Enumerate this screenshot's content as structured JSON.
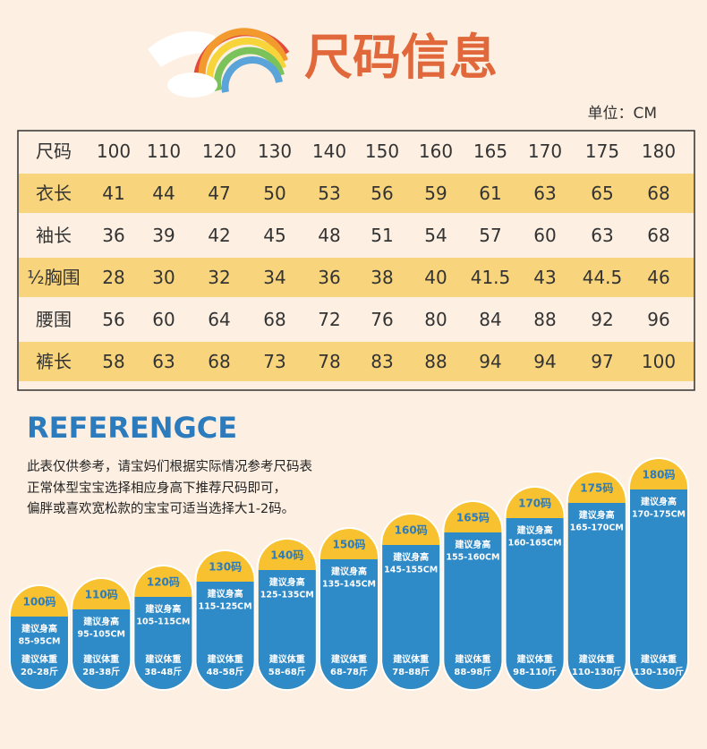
{
  "header": {
    "title": "尺码信息",
    "unit": "单位：CM"
  },
  "table": {
    "header": [
      "尺码",
      "100",
      "110",
      "120",
      "130",
      "140",
      "150",
      "160",
      "165",
      "170",
      "175",
      "180"
    ],
    "rows": [
      [
        "衣长",
        "41",
        "44",
        "47",
        "50",
        "53",
        "56",
        "59",
        "61",
        "63",
        "65",
        "68"
      ],
      [
        "袖长",
        "36",
        "39",
        "42",
        "45",
        "48",
        "51",
        "54",
        "57",
        "60",
        "63",
        "68"
      ],
      [
        "½胸围",
        "28",
        "30",
        "32",
        "34",
        "36",
        "38",
        "40",
        "41.5",
        "43",
        "44.5",
        "46"
      ],
      [
        "腰围",
        "56",
        "60",
        "64",
        "68",
        "72",
        "76",
        "80",
        "84",
        "88",
        "92",
        "96"
      ],
      [
        "裤长",
        "58",
        "63",
        "68",
        "73",
        "78",
        "83",
        "88",
        "94",
        "94",
        "97",
        "100"
      ]
    ]
  },
  "reference": {
    "title": "REFERENGCE",
    "lines": [
      "此表仅供参考，请宝妈们根据实际情况参考尺码表",
      "正常体型宝宝选择相应身高下推荐尺码即可，",
      "偏胖或喜欢宽松款的宝宝可适当选择大1-2码。"
    ]
  },
  "capsules": [
    {
      "size": "100码",
      "height_label": "建议身高",
      "height": "85-95CM",
      "weight_label": "建议体重",
      "weight": "20-28斤"
    },
    {
      "size": "110码",
      "height_label": "建议身高",
      "height": "95-105CM",
      "weight_label": "建议体重",
      "weight": "28-38斤"
    },
    {
      "size": "120码",
      "height_label": "建议身高",
      "height": "105-115CM",
      "weight_label": "建议体重",
      "weight": "38-48斤"
    },
    {
      "size": "130码",
      "height_label": "建议身高",
      "height": "115-125CM",
      "weight_label": "建议体重",
      "weight": "48-58斤"
    },
    {
      "size": "140码",
      "height_label": "建议身高",
      "height": "125-135CM",
      "weight_label": "建议体重",
      "weight": "58-68斤"
    },
    {
      "size": "150码",
      "height_label": "建议身高",
      "height": "135-145CM",
      "weight_label": "建议体重",
      "weight": "68-78斤"
    },
    {
      "size": "160码",
      "height_label": "建议身高",
      "height": "145-155CM",
      "weight_label": "建议体重",
      "weight": "78-88斤"
    },
    {
      "size": "165码",
      "height_label": "建议身高",
      "height": "155-160CM",
      "weight_label": "建议体重",
      "weight": "88-98斤"
    },
    {
      "size": "170码",
      "height_label": "建议身高",
      "height": "160-165CM",
      "weight_label": "建议体重",
      "weight": "98-110斤"
    },
    {
      "size": "175码",
      "height_label": "建议身高",
      "height": "165-170CM",
      "weight_label": "建议体重",
      "weight": "110-130斤"
    },
    {
      "size": "180码",
      "height_label": "建议身高",
      "height": "170-175CM",
      "weight_label": "建议体重",
      "weight": "130-150斤"
    }
  ]
}
